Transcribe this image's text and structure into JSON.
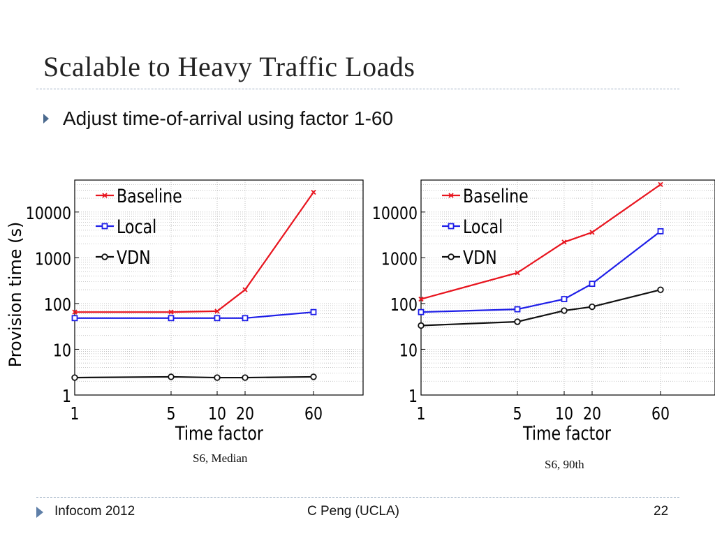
{
  "slide": {
    "title": "Scalable to Heavy Traffic Loads",
    "bullet": "Adjust time-of-arrival using factor 1-60",
    "footer_left": "Infocom 2012",
    "footer_center": "C Peng (UCLA)",
    "footer_right": "22"
  },
  "captions": [
    "S6, Median",
    "S6, 90th"
  ],
  "chart_data": [
    {
      "type": "line",
      "caption": "S6, Median",
      "ylabel": "Provision time (s)",
      "xlabel": "Time factor",
      "x": [
        1,
        5,
        10,
        20,
        60
      ],
      "x_tick_labels": [
        "1",
        "5",
        "10",
        "20",
        "60"
      ],
      "y_tick_labels": [
        "1",
        "10",
        "100",
        "1000",
        "10000"
      ],
      "yscale": "log",
      "ylim": [
        1,
        50000
      ],
      "grid": true,
      "legend": "top-left",
      "series": [
        {
          "name": "Baseline",
          "color": "#e8141e",
          "marker": "x",
          "values": [
            65,
            65,
            68,
            200,
            27000
          ]
        },
        {
          "name": "Local",
          "color": "#1e1ee8",
          "marker": "square",
          "values": [
            48,
            48,
            48,
            48,
            65
          ]
        },
        {
          "name": "VDN",
          "color": "#111111",
          "marker": "circle",
          "values": [
            2.4,
            2.5,
            2.4,
            2.4,
            2.5
          ]
        }
      ]
    },
    {
      "type": "line",
      "caption": "S6, 90th",
      "ylabel": "",
      "xlabel": "Time factor",
      "x": [
        1,
        5,
        10,
        20,
        60
      ],
      "x_tick_labels": [
        "1",
        "5",
        "10",
        "20",
        "60"
      ],
      "y_tick_labels": [
        "1",
        "10",
        "100",
        "1000",
        "10000"
      ],
      "yscale": "log",
      "ylim": [
        1,
        50000
      ],
      "grid": true,
      "legend": "top-left",
      "series": [
        {
          "name": "Baseline",
          "color": "#e8141e",
          "marker": "x",
          "values": [
            125,
            470,
            2200,
            3600,
            40000
          ]
        },
        {
          "name": "Local",
          "color": "#1e1ee8",
          "marker": "square",
          "values": [
            65,
            75,
            125,
            270,
            3800
          ]
        },
        {
          "name": "VDN",
          "color": "#111111",
          "marker": "circle",
          "values": [
            33,
            40,
            70,
            85,
            200
          ]
        }
      ]
    }
  ]
}
